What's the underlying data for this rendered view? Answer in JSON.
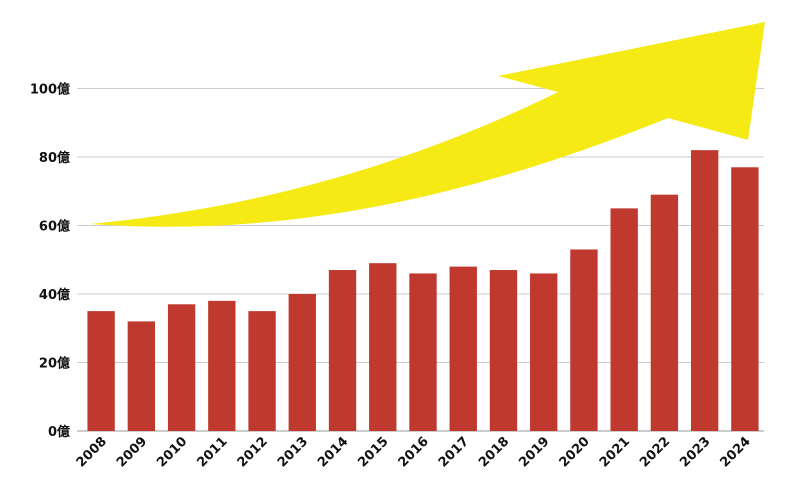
{
  "chart_data": {
    "type": "bar",
    "title": "",
    "xlabel": "",
    "ylabel": "",
    "categories": [
      "2008",
      "2009",
      "2010",
      "2011",
      "2012",
      "2013",
      "2014",
      "2015",
      "2016",
      "2017",
      "2018",
      "2019",
      "2020",
      "2021",
      "2022",
      "2023",
      "2024"
    ],
    "values": [
      35,
      32,
      37,
      38,
      35,
      40,
      47,
      49,
      46,
      48,
      47,
      46,
      53,
      65,
      69,
      82,
      77
    ],
    "ylim": [
      0,
      120
    ],
    "yticks": [
      0,
      20,
      40,
      60,
      80,
      100
    ],
    "ytick_labels": [
      "0億",
      "20億",
      "40億",
      "60億",
      "80億",
      "100億"
    ],
    "grid": true,
    "legend": "none",
    "colors": {
      "bar": "#c0392f",
      "gridline": "#cccccc",
      "trend_arrow": "#f5ea14"
    },
    "annotations": [
      {
        "type": "upward-trend-arrow"
      }
    ]
  }
}
